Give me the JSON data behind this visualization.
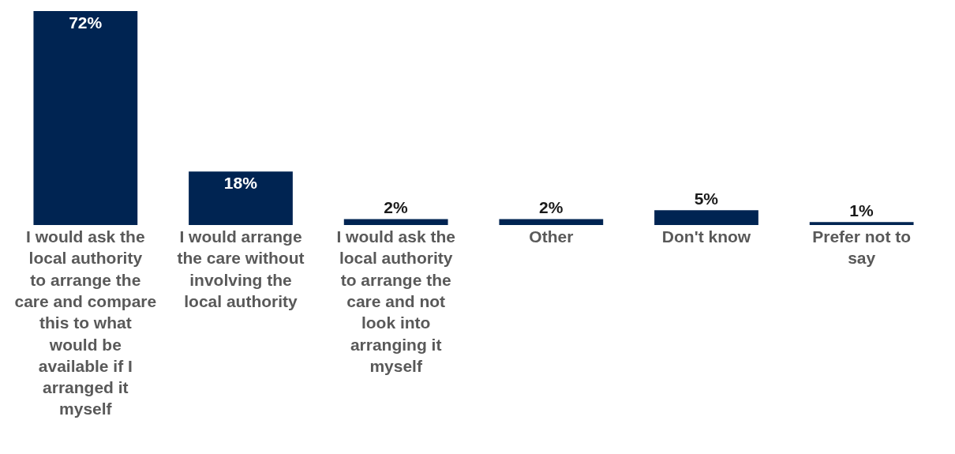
{
  "chart_data": {
    "type": "bar",
    "categories": [
      "I would ask the local authority to arrange the care and compare this to what would be available if I arranged it myself",
      "I would arrange the care without involving the local authority",
      "I would ask the local authority to arrange the care and not look into arranging it myself",
      "Other",
      "Don't know",
      "Prefer not to say"
    ],
    "values": [
      72,
      18,
      2,
      2,
      5,
      1
    ],
    "value_labels": [
      "72%",
      "18%",
      "2%",
      "2%",
      "5%",
      "1%"
    ],
    "color": "#002452"
  }
}
